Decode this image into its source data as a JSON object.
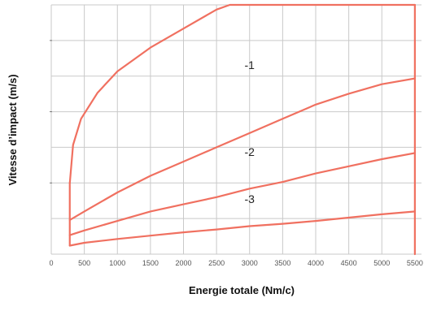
{
  "chart_data": {
    "type": "line",
    "xlabel": "Energie totale (Nm/c)",
    "ylabel": "Vitesse d’impact (m/s)",
    "xlim": [
      0,
      5600
    ],
    "ylim": [
      0,
      5.25
    ],
    "x_ticks": [
      0,
      500,
      1000,
      1500,
      2000,
      2500,
      3000,
      3500,
      4000,
      4500,
      5000,
      5500
    ],
    "x_tick_labels": [
      "0",
      "500",
      "1000",
      "1500",
      "2000",
      "2500",
      "3000",
      "3500",
      "4000",
      "4500",
      "5000",
      "5500"
    ],
    "y_gridlines": [
      0,
      0.75,
      1.5,
      2.25,
      3.0,
      3.75,
      4.5,
      5.25
    ],
    "y_tick_marks": [
      1.5,
      3.0,
      4.5
    ],
    "grid": true,
    "line_color": "#f07060",
    "series": [
      {
        "name": "",
        "x": [
          280,
          330,
          450,
          700,
          1000,
          1500,
          2000,
          2500,
          2700,
          5500
        ],
        "y": [
          1.5,
          2.3,
          2.85,
          3.4,
          3.85,
          4.35,
          4.75,
          5.15,
          5.25,
          5.25
        ]
      },
      {
        "name": "-1",
        "x": [
          280,
          500,
          1000,
          1500,
          2000,
          2500,
          3000,
          3500,
          4000,
          4500,
          5000,
          5500
        ],
        "y": [
          0.72,
          0.9,
          1.3,
          1.65,
          1.95,
          2.25,
          2.55,
          2.85,
          3.15,
          3.38,
          3.58,
          3.7
        ]
      },
      {
        "name": "-2",
        "x": [
          280,
          500,
          1000,
          1500,
          2000,
          2500,
          3000,
          3500,
          4000,
          4500,
          5000,
          5500
        ],
        "y": [
          0.4,
          0.5,
          0.7,
          0.9,
          1.05,
          1.2,
          1.38,
          1.52,
          1.7,
          1.85,
          2.0,
          2.13
        ]
      },
      {
        "name": "-3",
        "x": [
          280,
          500,
          1000,
          1500,
          2000,
          2500,
          3000,
          3500,
          4000,
          4500,
          5000,
          5500
        ],
        "y": [
          0.18,
          0.24,
          0.32,
          0.39,
          0.46,
          0.52,
          0.59,
          0.64,
          0.7,
          0.77,
          0.84,
          0.9
        ]
      }
    ],
    "boundaries": {
      "left_x": 280,
      "left_y_range": [
        0.18,
        1.5
      ],
      "right_x": 5500,
      "right_y_range": [
        0,
        5.25
      ]
    }
  }
}
